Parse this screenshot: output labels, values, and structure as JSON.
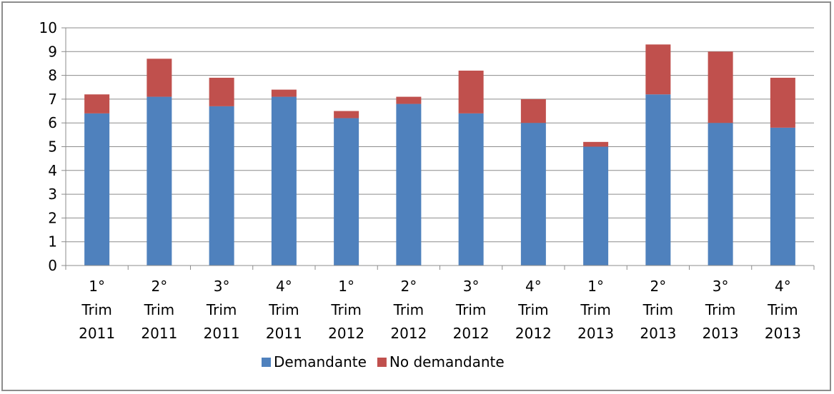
{
  "chart_data": {
    "type": "bar",
    "stacked": true,
    "categories": [
      [
        "1°",
        "Trim",
        "2011"
      ],
      [
        "2°",
        "Trim",
        "2011"
      ],
      [
        "3°",
        "Trim",
        "2011"
      ],
      [
        "4°",
        "Trim",
        "2011"
      ],
      [
        "1°",
        "Trim",
        "2012"
      ],
      [
        "2°",
        "Trim",
        "2012"
      ],
      [
        "3°",
        "Trim",
        "2012"
      ],
      [
        "4°",
        "Trim",
        "2012"
      ],
      [
        "1°",
        "Trim",
        "2013"
      ],
      [
        "2°",
        "Trim",
        "2013"
      ],
      [
        "3°",
        "Trim",
        "2013"
      ],
      [
        "4°",
        "Trim",
        "2013"
      ]
    ],
    "series": [
      {
        "name": "Demandante",
        "color": "#4f81bd",
        "values": [
          6.4,
          7.1,
          6.7,
          7.1,
          6.2,
          6.8,
          6.4,
          6.0,
          5.0,
          7.2,
          6.0,
          5.8
        ]
      },
      {
        "name": "No demandante",
        "color": "#c0504d",
        "values": [
          0.8,
          1.6,
          1.2,
          0.3,
          0.3,
          0.3,
          1.8,
          1.0,
          0.2,
          2.1,
          3.0,
          2.1
        ]
      }
    ],
    "ylim": [
      0,
      10
    ],
    "yticks": [
      "0",
      "1",
      "2",
      "3",
      "4",
      "5",
      "6",
      "7",
      "8",
      "9",
      "10"
    ],
    "grid": true,
    "legend": "bottom",
    "title": "",
    "xlabel": "",
    "ylabel": ""
  }
}
